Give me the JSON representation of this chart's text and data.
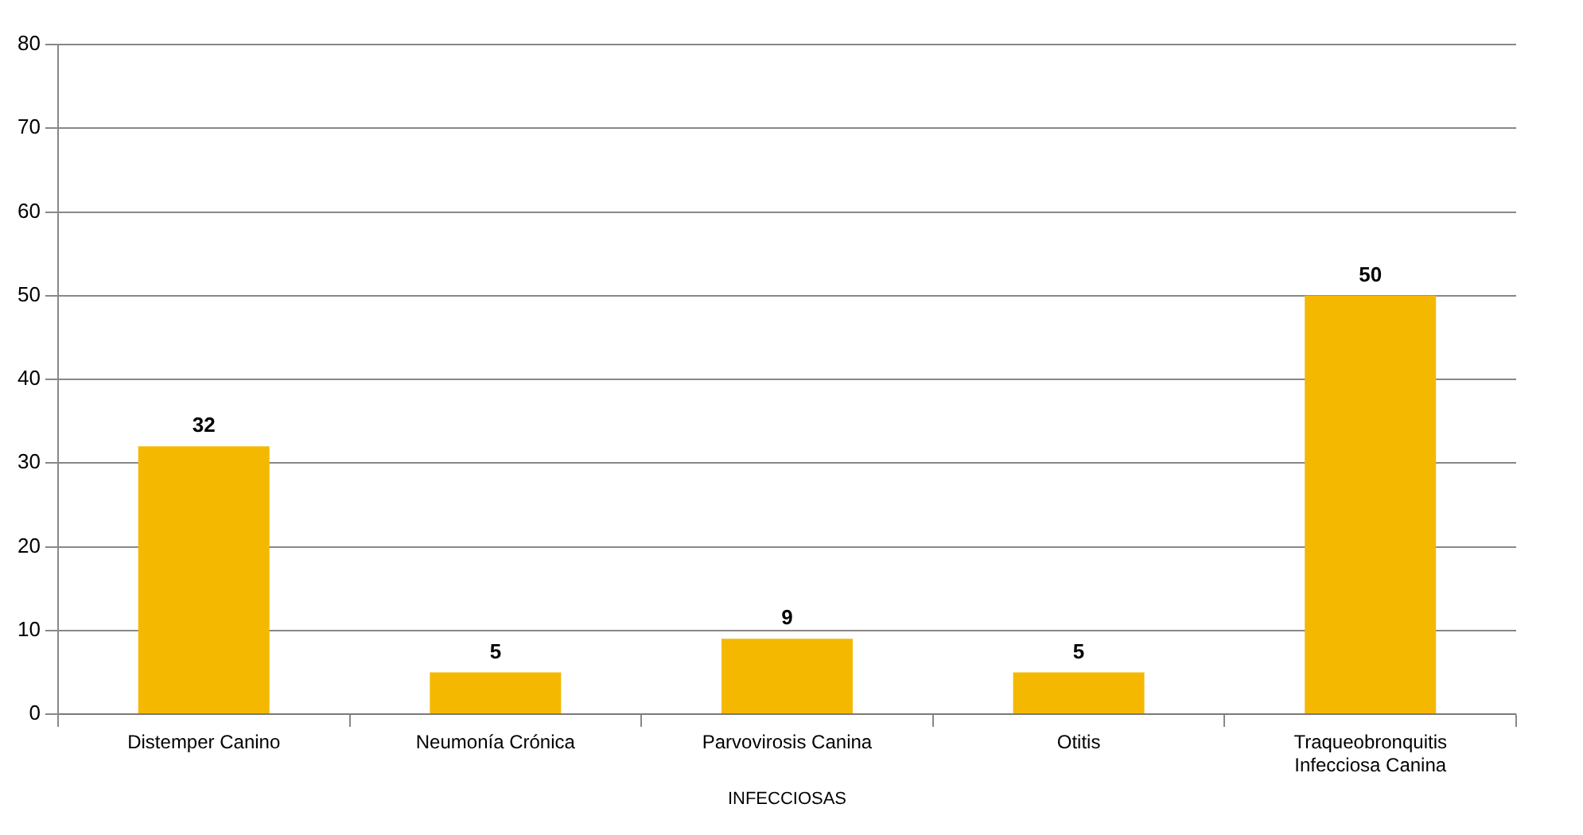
{
  "chart_data": {
    "type": "bar",
    "xlabel": "INFECCIOSAS",
    "categories": [
      "Distemper Canino",
      "Neumonía Crónica",
      "Parvovirosis Canina",
      "Otitis",
      "Traqueobronquitis Infecciosa Canina"
    ],
    "values": [
      32,
      5,
      9,
      5,
      50
    ],
    "color": "#f5b800",
    "ylim": [
      0,
      80
    ],
    "yticks": [
      0,
      10,
      20,
      30,
      40,
      50,
      60,
      70,
      80
    ],
    "grid": "y",
    "data_labels": true
  }
}
